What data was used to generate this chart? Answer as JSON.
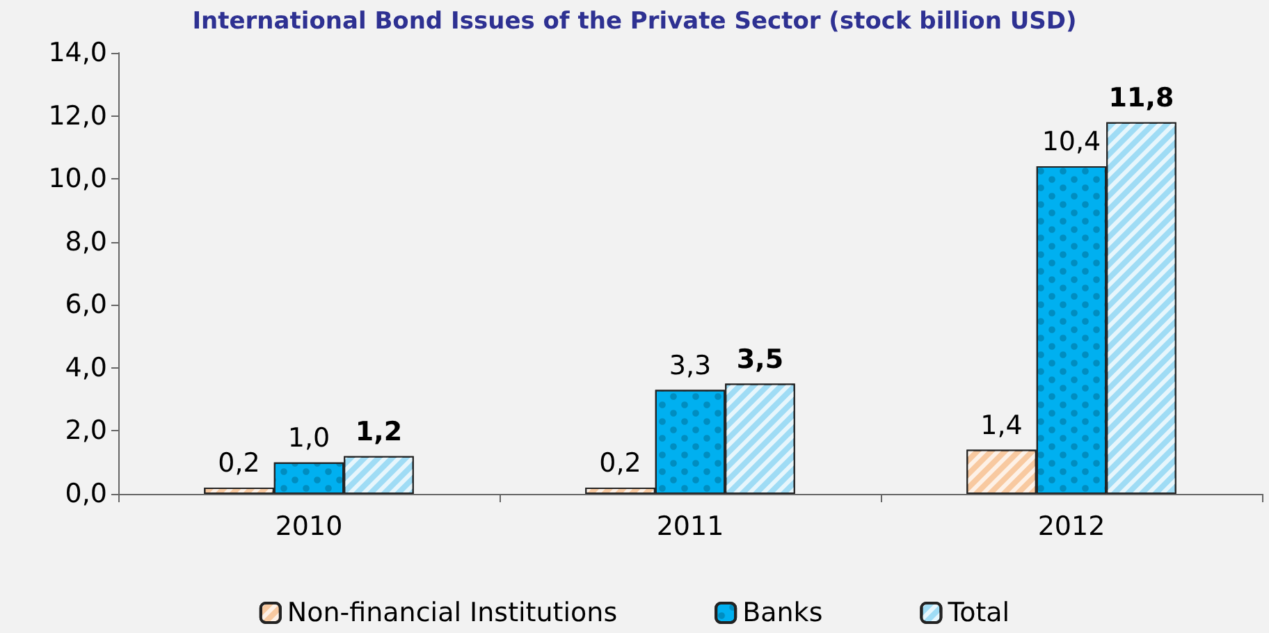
{
  "chart_data": {
    "type": "bar",
    "title": "International Bond Issues of the Private Sector (stock billion USD)",
    "categories": [
      "2010",
      "2011",
      "2012"
    ],
    "series": [
      {
        "name": "Non-financial Institutions",
        "color": "#f8c9a0",
        "values": [
          0.2,
          0.2,
          1.4
        ],
        "value_labels": [
          "0,2",
          "0,2",
          "1,4"
        ]
      },
      {
        "name": "Banks",
        "color": "#00b0f0",
        "values": [
          1.0,
          3.3,
          10.4
        ],
        "value_labels": [
          "1,0",
          "3,3",
          "10,4"
        ]
      },
      {
        "name": "Total",
        "color": "#9fdcf5",
        "values": [
          1.2,
          3.5,
          11.8
        ],
        "value_labels": [
          "1,2",
          "3,5",
          "11,8"
        ]
      }
    ],
    "ylim": [
      0,
      14
    ],
    "yticks": [
      {
        "value": 0,
        "label": "0,0"
      },
      {
        "value": 2,
        "label": "2,0"
      },
      {
        "value": 4,
        "label": "4,0"
      },
      {
        "value": 6,
        "label": "6,0"
      },
      {
        "value": 8,
        "label": "8,0"
      },
      {
        "value": 10,
        "label": "10,0"
      },
      {
        "value": 12,
        "label": "12,0"
      },
      {
        "value": 14,
        "label": "14,0"
      }
    ],
    "grid": false,
    "legend": "bottom"
  }
}
